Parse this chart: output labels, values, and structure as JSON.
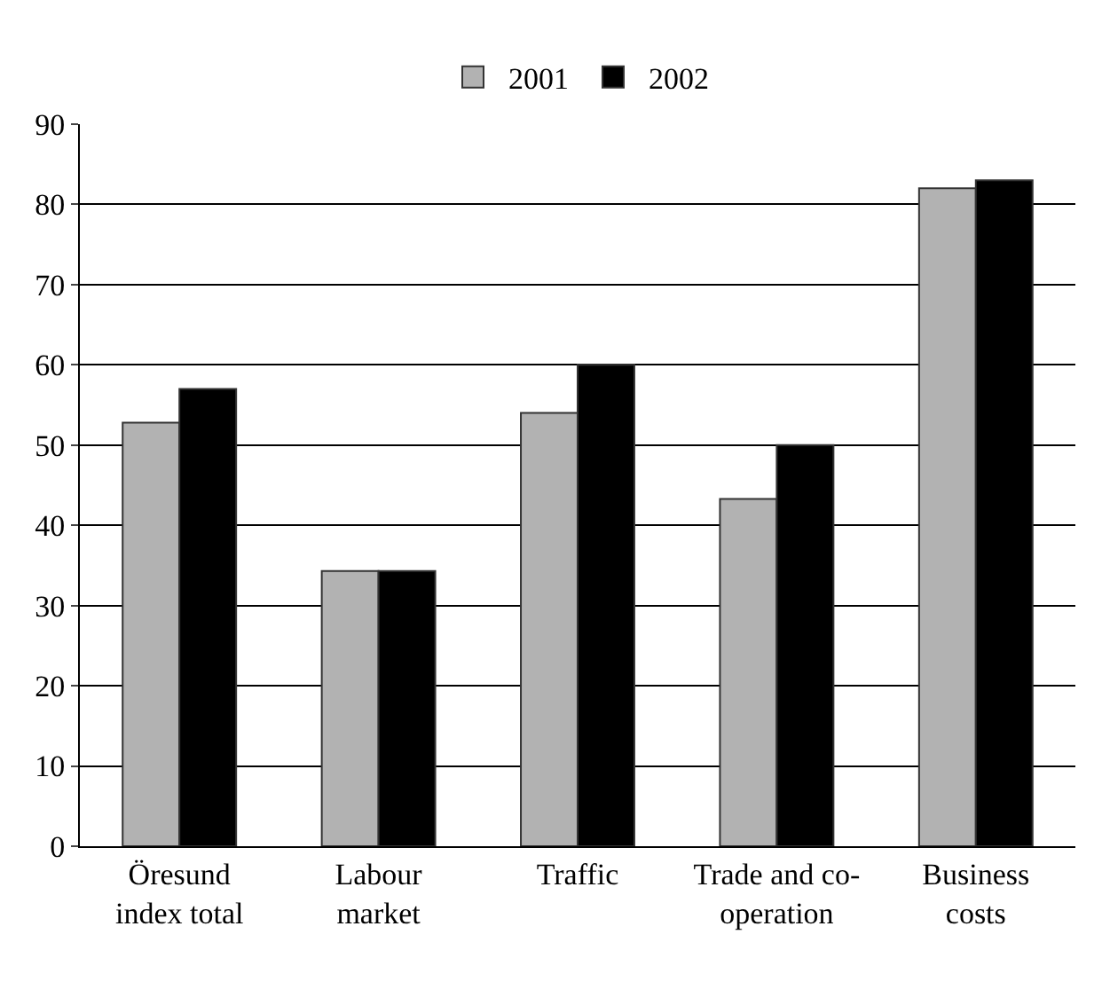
{
  "chart_data": {
    "type": "bar",
    "categories": [
      "Öresund\nindex total",
      "Labour\nmarket",
      "Traffic",
      "Trade and co-\noperation",
      "Business\ncosts"
    ],
    "series": [
      {
        "name": "2001",
        "color": "#b2b2b2",
        "values": [
          52.8,
          34.3,
          54,
          43.3,
          82
        ]
      },
      {
        "name": "2002",
        "color": "#000000",
        "values": [
          57,
          34.3,
          60,
          50,
          83
        ]
      }
    ],
    "ylim": [
      0,
      90
    ],
    "yticks": [
      0,
      10,
      20,
      30,
      40,
      50,
      60,
      70,
      80,
      90
    ],
    "grid": "y",
    "legend": "top"
  }
}
